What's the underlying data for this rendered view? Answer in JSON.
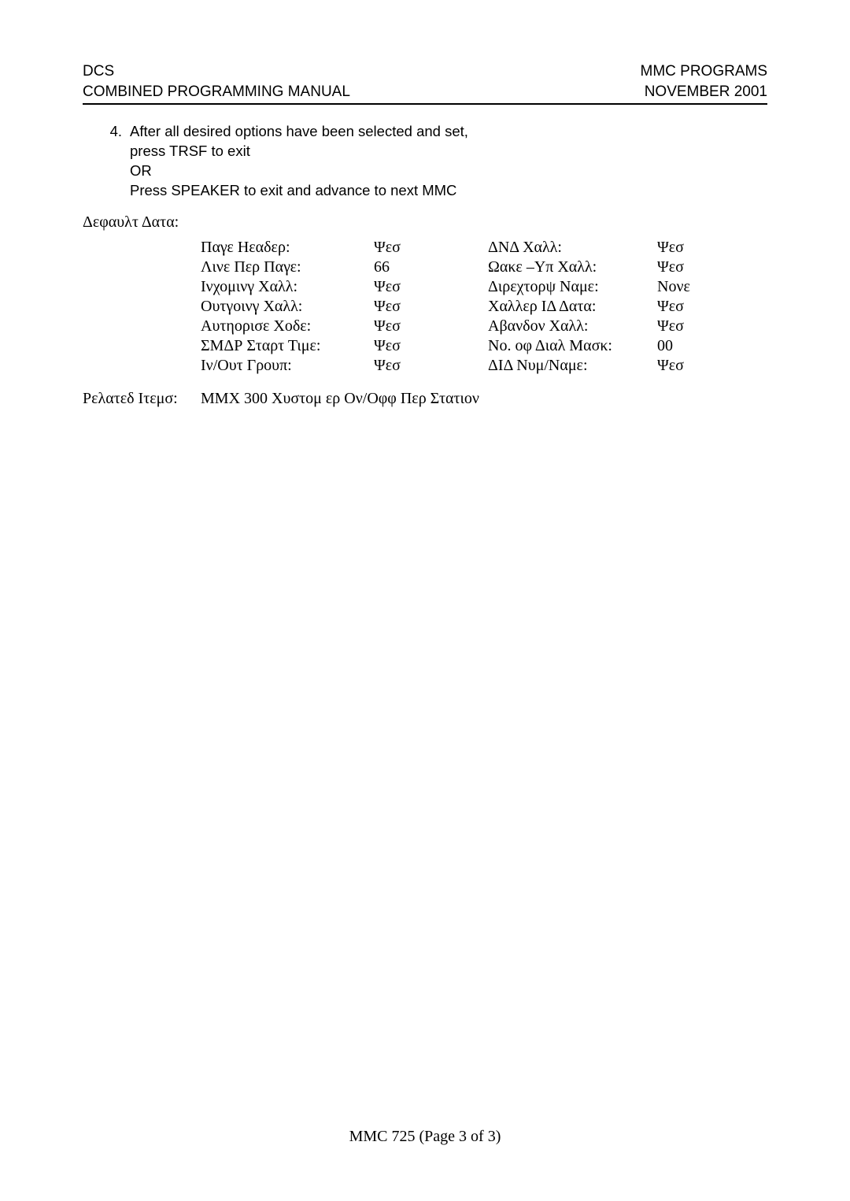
{
  "header": {
    "left1": "DCS",
    "left2": "COMBINED PROGRAMMING MANUAL",
    "right1": "MMC PROGRAMS",
    "right2": "NOVEMBER 2001"
  },
  "step": {
    "num": "4.",
    "line1": "After all desired options have been selected and set,",
    "line2": "press TRSF to exit",
    "line3": "OR",
    "line4": "Press SPEAKER to exit and advance to next MMC"
  },
  "defaultDataLabel": "Δεφαυλτ Δατα:",
  "rows": [
    {
      "l1": "Παγε Ηεαδερ:",
      "v1": "Ψεσ",
      "l2": "ΔΝΔ Χαλλ:",
      "v2": "Ψεσ"
    },
    {
      "l1": "Λινε Περ Παγε:",
      "v1": "66",
      "l2": "Ωακε –Υπ  Χαλλ:",
      "v2": "Ψεσ"
    },
    {
      "l1": "Ινχομινγ Χαλλ:",
      "v1": "Ψεσ",
      "l2": "Διρεχτορψ Ναμε:",
      "v2": "Νονε"
    },
    {
      "l1": "Ουτγοινγ Χαλλ:",
      "v1": "Ψεσ",
      "l2": "Χαλλερ ΙΔ Δατα:",
      "v2": "Ψεσ"
    },
    {
      "l1": "Αυτηορισε Χοδε:",
      "v1": "Ψεσ",
      "l2": "Αβανδον Χαλλ:",
      "v2": "Ψεσ"
    },
    {
      "l1": "ΣΜΔΡ Σταρτ Τιμε:",
      "v1": "Ψεσ",
      "l2": "Νο. οφ Διαλ Μασκ:",
      "v2": "00"
    },
    {
      "l1": "Ιν/Ουτ Γρουπ:",
      "v1": "Ψεσ",
      "l2": "ΔΙΔ Νυμ/Ναμε:",
      "v2": "Ψεσ"
    }
  ],
  "related": {
    "label": "Ρελατεδ Ιτεμσ:",
    "body": "ΜΜΧ 300 Χυστομ  ερ Ον/Οφφ Περ Στατιον"
  },
  "footer": "MMC 725 (Page 3 of 3)"
}
